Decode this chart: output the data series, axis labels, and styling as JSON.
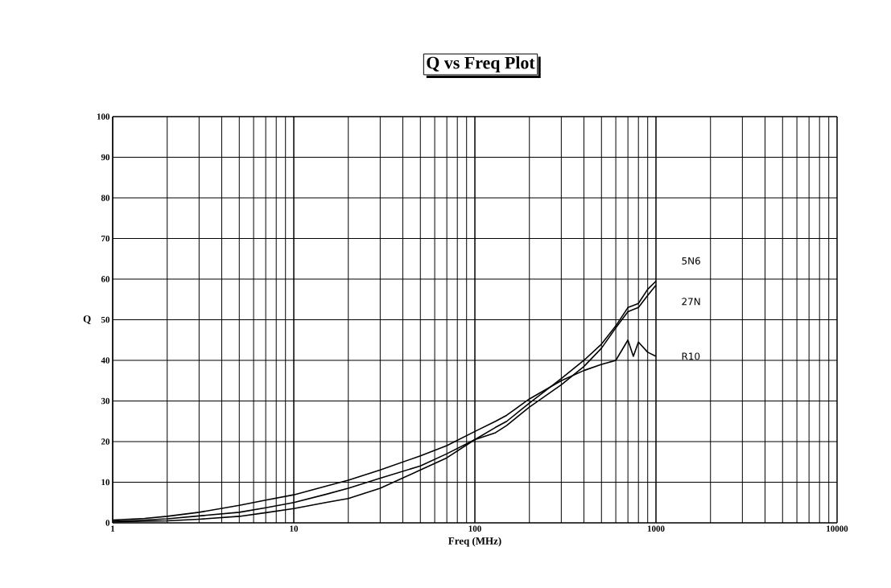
{
  "chart_data": {
    "type": "line",
    "title": "Q vs Freq Plot",
    "xlabel": "Freq (MHz)",
    "ylabel": "Q",
    "log": "x",
    "grid": true,
    "marker": "none",
    "line_style": "solid",
    "xlim": [
      1,
      10000
    ],
    "ylim": [
      0,
      100
    ],
    "xticks": [
      1,
      10,
      100,
      1000,
      10000
    ],
    "yticks": [
      0,
      10,
      20,
      30,
      40,
      50,
      60,
      70,
      80,
      90,
      100
    ],
    "x": [
      1,
      1.5,
      2,
      3,
      5,
      7,
      10,
      15,
      20,
      30,
      50,
      70,
      100,
      130,
      150,
      200,
      300,
      400,
      500,
      600,
      700,
      750,
      800,
      900,
      1000
    ],
    "series": [
      {
        "name": "5N6",
        "color": "#000000",
        "values": [
          0.2,
          0.4,
          0.5,
          0.9,
          1.6,
          2.5,
          3.5,
          5,
          6,
          8.5,
          13,
          16,
          20.5,
          23.5,
          25,
          29.5,
          35.5,
          40,
          44,
          48.5,
          53,
          53.5,
          54,
          57.5,
          59.5
        ]
      },
      {
        "name": "27N",
        "color": "#000000",
        "values": [
          0.4,
          0.7,
          1.0,
          1.7,
          2.6,
          3.7,
          5.0,
          7,
          8.5,
          11,
          14,
          17,
          20.5,
          22.2,
          24,
          28.5,
          34,
          38.5,
          43,
          48,
          52,
          52.5,
          53,
          56,
          58.5
        ]
      },
      {
        "name": "R10",
        "color": "#000000",
        "values": [
          0.7,
          1.1,
          1.6,
          2.6,
          4.3,
          5.6,
          6.9,
          9,
          10.5,
          13,
          16.5,
          19,
          22.5,
          25,
          26.5,
          30.5,
          35,
          37.5,
          39,
          40,
          45,
          41,
          44.5,
          42,
          41
        ]
      }
    ]
  }
}
